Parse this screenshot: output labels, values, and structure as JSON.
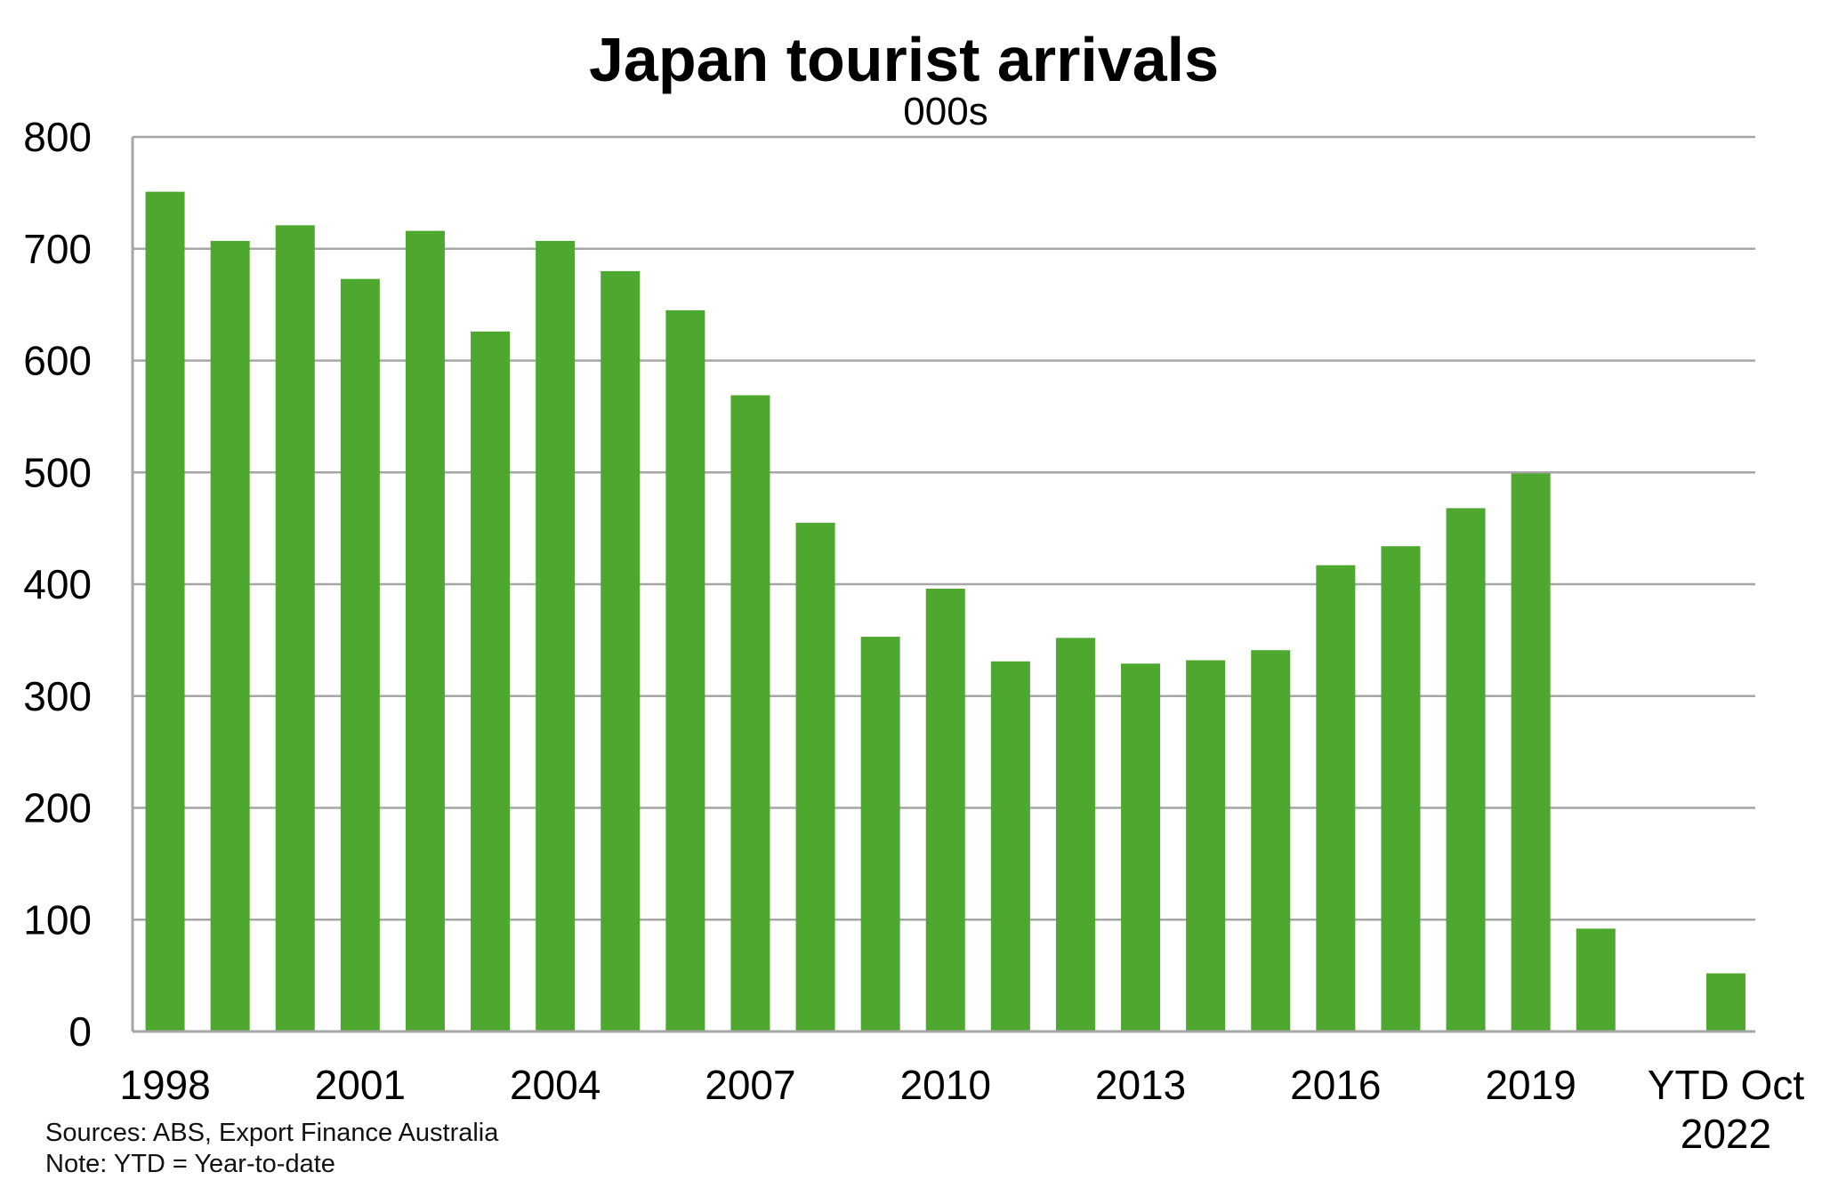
{
  "chart_data": {
    "type": "bar",
    "title": "Japan tourist arrivals",
    "subtitle": "000s",
    "categories": [
      "1998",
      "1999",
      "2000",
      "2001",
      "2002",
      "2003",
      "2004",
      "2005",
      "2006",
      "2007",
      "2008",
      "2009",
      "2010",
      "2011",
      "2012",
      "2013",
      "2014",
      "2015",
      "2016",
      "2017",
      "2018",
      "2019",
      "2020",
      "2021",
      "YTD Oct 2022"
    ],
    "values": [
      751,
      707,
      721,
      673,
      716,
      626,
      707,
      680,
      645,
      569,
      455,
      353,
      396,
      331,
      352,
      329,
      332,
      341,
      417,
      434,
      468,
      499,
      92,
      0,
      52
    ],
    "x_tick_labels": [
      {
        "category": "1998",
        "lines": [
          "1998"
        ]
      },
      {
        "category": "2001",
        "lines": [
          "2001"
        ]
      },
      {
        "category": "2004",
        "lines": [
          "2004"
        ]
      },
      {
        "category": "2007",
        "lines": [
          "2007"
        ]
      },
      {
        "category": "2010",
        "lines": [
          "2010"
        ]
      },
      {
        "category": "2013",
        "lines": [
          "2013"
        ]
      },
      {
        "category": "2016",
        "lines": [
          "2016"
        ]
      },
      {
        "category": "2019",
        "lines": [
          "2019"
        ]
      },
      {
        "category": "YTD Oct 2022",
        "lines": [
          "YTD Oct",
          "2022"
        ]
      }
    ],
    "y_ticks": [
      0,
      100,
      200,
      300,
      400,
      500,
      600,
      700,
      800
    ],
    "ylim": [
      0,
      800
    ],
    "xlabel": "",
    "ylabel": "",
    "grid": true,
    "legend": false,
    "bar_color": "#4ea72e",
    "grid_color": "#a6a6a6",
    "notes": [
      "Sources: ABS, Export Finance Australia",
      "Note: YTD = Year-to-date"
    ]
  }
}
